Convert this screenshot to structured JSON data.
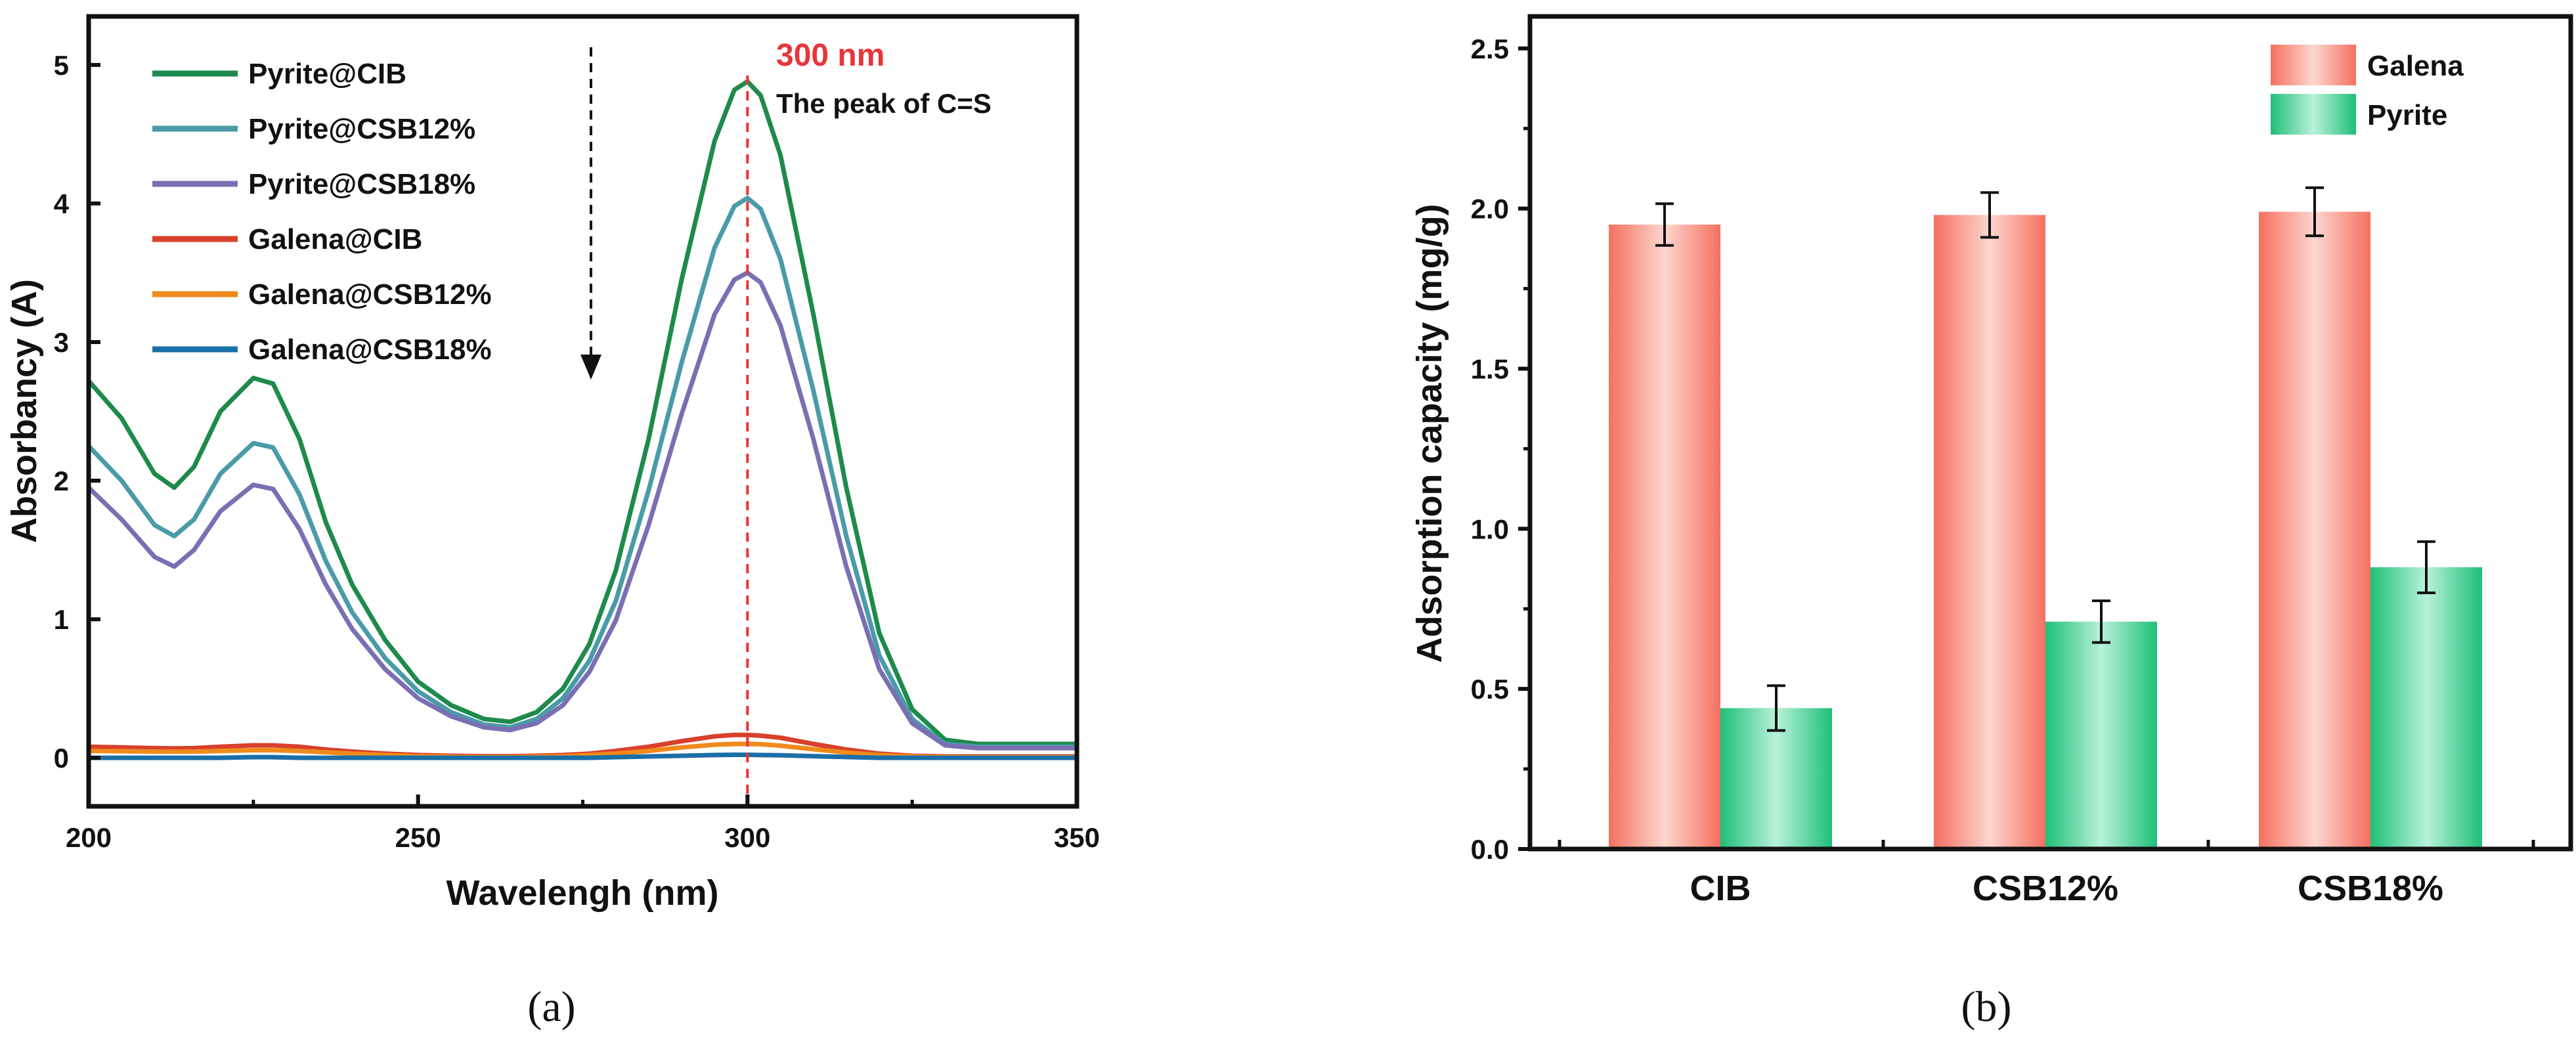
{
  "chart_data": [
    {
      "type": "line",
      "panel_label": "(a)",
      "xlabel": "Wavelengh (nm)",
      "ylabel": "Absorbancy (A)",
      "xlim": [
        200,
        350
      ],
      "ylim": [
        -0.35,
        5.35
      ],
      "xticks": [
        200,
        250,
        300,
        350
      ],
      "yticks": [
        0,
        1,
        2,
        3,
        4,
        5
      ],
      "legend_position": "top-left",
      "annotations": {
        "peak_line_x": 300,
        "peak_label": "300 nm",
        "peak_note": "The peak of C=S",
        "arrow": "downward dashed arrow indicating decrease"
      },
      "x": [
        200,
        205,
        210,
        213,
        216,
        220,
        225,
        228,
        232,
        236,
        240,
        245,
        250,
        255,
        260,
        264,
        268,
        272,
        276,
        280,
        285,
        290,
        295,
        298,
        300,
        302,
        305,
        310,
        315,
        320,
        325,
        330,
        335,
        340,
        345,
        350
      ],
      "series": [
        {
          "name": "Pyrite@CIB",
          "color": "#1e8a4c",
          "values": [
            2.72,
            2.45,
            2.05,
            1.95,
            2.1,
            2.5,
            2.74,
            2.7,
            2.3,
            1.7,
            1.25,
            0.85,
            0.55,
            0.38,
            0.28,
            0.26,
            0.33,
            0.5,
            0.82,
            1.35,
            2.3,
            3.45,
            4.45,
            4.82,
            4.88,
            4.78,
            4.35,
            3.2,
            1.95,
            0.9,
            0.35,
            0.13,
            0.1,
            0.1,
            0.1,
            0.1
          ]
        },
        {
          "name": "Pyrite@CSB12%",
          "color": "#4a9ba8",
          "values": [
            2.25,
            2.0,
            1.68,
            1.6,
            1.72,
            2.05,
            2.27,
            2.24,
            1.9,
            1.42,
            1.05,
            0.72,
            0.48,
            0.33,
            0.24,
            0.22,
            0.28,
            0.43,
            0.7,
            1.13,
            1.93,
            2.85,
            3.68,
            3.98,
            4.04,
            3.96,
            3.6,
            2.65,
            1.6,
            0.74,
            0.28,
            0.1,
            0.08,
            0.08,
            0.08,
            0.08
          ]
        },
        {
          "name": "Pyrite@CSB18%",
          "color": "#7a6fb3",
          "values": [
            1.95,
            1.72,
            1.45,
            1.38,
            1.5,
            1.78,
            1.97,
            1.94,
            1.65,
            1.25,
            0.93,
            0.64,
            0.43,
            0.3,
            0.22,
            0.2,
            0.25,
            0.38,
            0.62,
            0.99,
            1.68,
            2.48,
            3.2,
            3.45,
            3.5,
            3.43,
            3.12,
            2.3,
            1.38,
            0.64,
            0.25,
            0.09,
            0.07,
            0.07,
            0.07,
            0.07
          ]
        },
        {
          "name": "Galena@CIB",
          "color": "#d9402b",
          "values": [
            0.08,
            0.075,
            0.07,
            0.068,
            0.07,
            0.08,
            0.09,
            0.09,
            0.08,
            0.06,
            0.045,
            0.03,
            0.02,
            0.015,
            0.012,
            0.012,
            0.015,
            0.02,
            0.03,
            0.05,
            0.08,
            0.12,
            0.155,
            0.165,
            0.165,
            0.16,
            0.145,
            0.1,
            0.06,
            0.03,
            0.015,
            0.01,
            0.01,
            0.01,
            0.01,
            0.01
          ]
        },
        {
          "name": "Galena@CSB12%",
          "color": "#f08a1c",
          "values": [
            0.05,
            0.048,
            0.045,
            0.044,
            0.045,
            0.05,
            0.055,
            0.055,
            0.05,
            0.04,
            0.03,
            0.02,
            0.012,
            0.008,
            0.006,
            0.006,
            0.008,
            0.012,
            0.02,
            0.03,
            0.05,
            0.075,
            0.095,
            0.1,
            0.1,
            0.098,
            0.088,
            0.062,
            0.038,
            0.02,
            0.01,
            0.006,
            0.005,
            0.005,
            0.005,
            0.005
          ]
        },
        {
          "name": "Galena@CSB18%",
          "color": "#1b6fa8",
          "values": [
            0.0,
            0.0,
            0.0,
            0.0,
            0.0,
            0.0,
            0.005,
            0.005,
            0.0,
            0.0,
            0.0,
            0.0,
            0.0,
            0.0,
            0.0,
            0.0,
            0.0,
            0.0,
            0.0,
            0.005,
            0.01,
            0.015,
            0.02,
            0.022,
            0.022,
            0.02,
            0.018,
            0.012,
            0.006,
            0.0,
            0.0,
            0.0,
            0.0,
            0.0,
            0.0,
            0.0
          ]
        }
      ]
    },
    {
      "type": "bar",
      "panel_label": "(b)",
      "xlabel": "",
      "ylabel": "Adsorption capacity (mg/g)",
      "ylim": [
        0,
        2.6
      ],
      "yticks": [
        0.0,
        0.5,
        1.0,
        1.5,
        2.0,
        2.5
      ],
      "ytick_labels": [
        "0.0",
        "0.5",
        "1.0",
        "1.5",
        "2.0",
        "2.5"
      ],
      "categories": [
        "CIB",
        "CSB12%",
        "CSB18%"
      ],
      "legend_position": "top-right",
      "series": [
        {
          "name": "Galena",
          "color_edge": "#f27565",
          "color_mid": "#fdd0c8",
          "values": [
            1.95,
            1.98,
            1.99
          ],
          "errors": [
            0.065,
            0.07,
            0.075
          ]
        },
        {
          "name": "Pyrite",
          "color_edge": "#20c07a",
          "color_mid": "#b3f0d4",
          "values": [
            0.44,
            0.71,
            0.88
          ],
          "errors": [
            0.07,
            0.065,
            0.08
          ]
        }
      ]
    }
  ]
}
